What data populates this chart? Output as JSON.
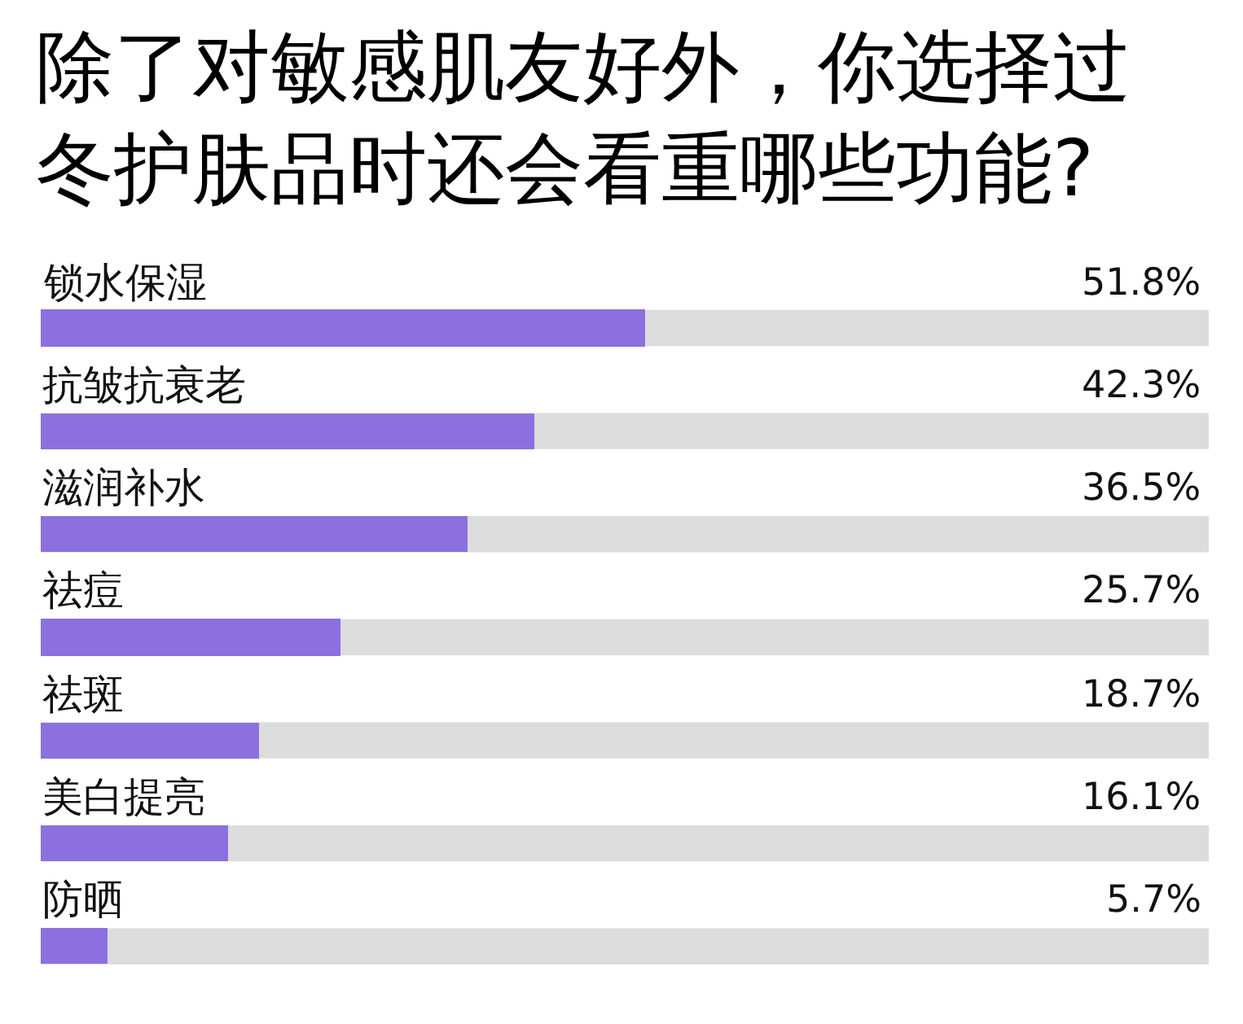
{
  "chart_data": {
    "type": "bar",
    "orientation": "horizontal",
    "title": "除了对敏感肌友好外，你选择过冬护肤品时还会看重哪些功能?",
    "categories": [
      "锁水保湿",
      "抗皱抗衰老",
      "滋润补水",
      "祛痘",
      "祛斑",
      "美白提亮",
      "防晒"
    ],
    "values": [
      51.8,
      42.3,
      36.5,
      25.7,
      18.7,
      16.1,
      5.7
    ],
    "color": "#8c70e0",
    "value_labels": [
      "51.8%",
      "42.3%",
      "36.5%",
      "25.7%",
      "18.7%",
      "16.1%",
      "5.7%"
    ],
    "xlim": [
      0,
      100
    ],
    "tick_labels": "y"
  }
}
